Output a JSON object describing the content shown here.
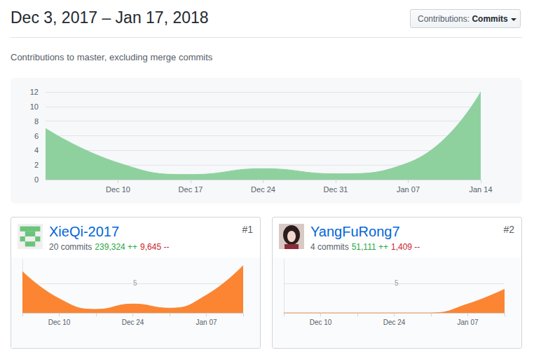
{
  "header": {
    "title": "Dec 3, 2017 – Jan 17, 2018",
    "menu_label": "Contributions:",
    "menu_value": "Commits",
    "subtitle": "Contributions to master, excluding merge commits"
  },
  "chart_data": [
    {
      "type": "area",
      "categories": [
        null,
        "Dec 10",
        "Dec 17",
        "Dec 24",
        "Dec 31",
        "Jan 07",
        "Jan 14"
      ],
      "values": [
        7,
        2.3,
        0.7,
        1.5,
        0.8,
        2.3,
        12
      ],
      "color": "#8fd19e",
      "ylim": [
        0,
        12
      ],
      "yticks": [
        0,
        2,
        4,
        6,
        8,
        10,
        12
      ],
      "grid": true
    },
    {
      "type": "area",
      "title": "XieQi-2017",
      "annotations": {
        "rank": "#1",
        "commits": "20 commits",
        "additions": "239,324 ++",
        "deletions": "9,645 --"
      },
      "categories": [
        null,
        "Dec 10",
        null,
        "Dec 24",
        null,
        "Jan 07",
        null
      ],
      "values": [
        7,
        2.4,
        0.6,
        1.5,
        0.8,
        3,
        8
      ],
      "color": "#fb8532",
      "ylim": [
        0,
        9
      ],
      "yticks": [
        5
      ],
      "grid": true
    },
    {
      "type": "area",
      "title": "YangFuRong7",
      "annotations": {
        "rank": "#2",
        "commits": "4 commits",
        "additions": "51,111 ++",
        "deletions": "1,409 --"
      },
      "categories": [
        null,
        "Dec 10",
        null,
        "Dec 24",
        null,
        "Jan 07",
        null
      ],
      "values": [
        0,
        0,
        0,
        0,
        0,
        1.5,
        4
      ],
      "color": "#fb8532",
      "ylim": [
        0,
        9
      ],
      "yticks": [
        5
      ],
      "grid": true
    }
  ]
}
